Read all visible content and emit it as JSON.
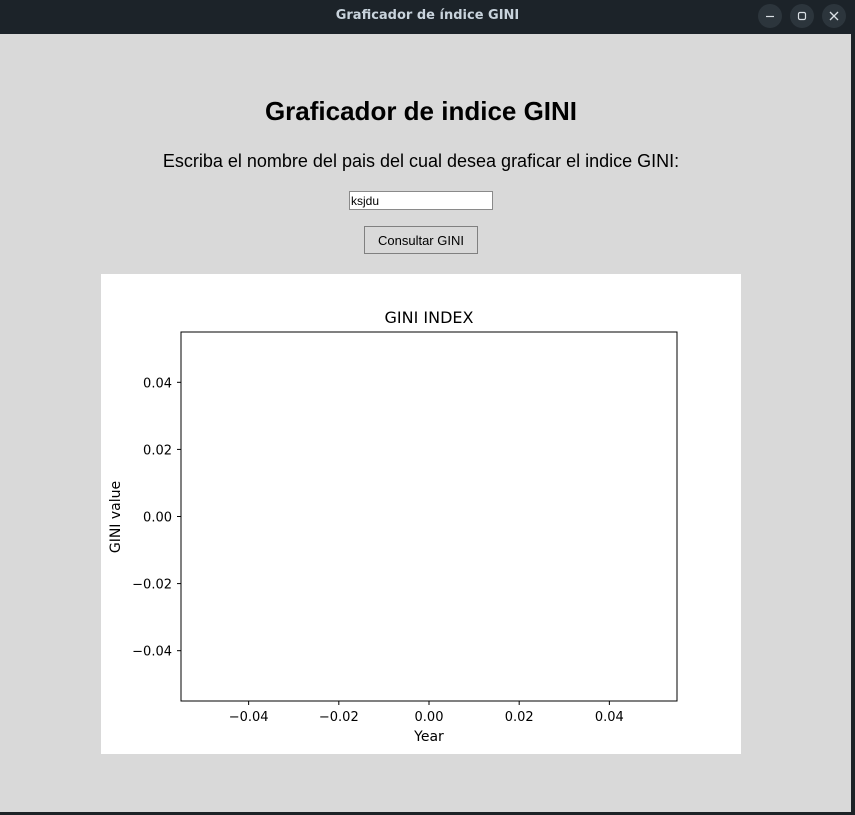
{
  "window": {
    "title": "Graficador de índice GINI"
  },
  "main": {
    "heading": "Graficador de indice GINI",
    "prompt": "Escriba el nombre del pais del cual desea graficar el indice GINI:",
    "country_input_value": "ksjdu",
    "query_button_label": "Consultar GINI"
  },
  "chart_data": {
    "type": "line",
    "title": "GINI INDEX",
    "xlabel": "Year",
    "ylabel": "GINI value",
    "series": [],
    "xlim": [
      -0.055,
      0.055
    ],
    "ylim": [
      -0.055,
      0.055
    ],
    "xticks": [
      "−0.04",
      "−0.02",
      "0.00",
      "0.02",
      "0.04"
    ],
    "yticks": [
      "−0.04",
      "−0.02",
      "0.00",
      "0.02",
      "0.04"
    ],
    "xtick_values": [
      -0.04,
      -0.02,
      0.0,
      0.02,
      0.04
    ],
    "ytick_values": [
      -0.04,
      -0.02,
      0.0,
      0.02,
      0.04
    ],
    "grid": false
  }
}
